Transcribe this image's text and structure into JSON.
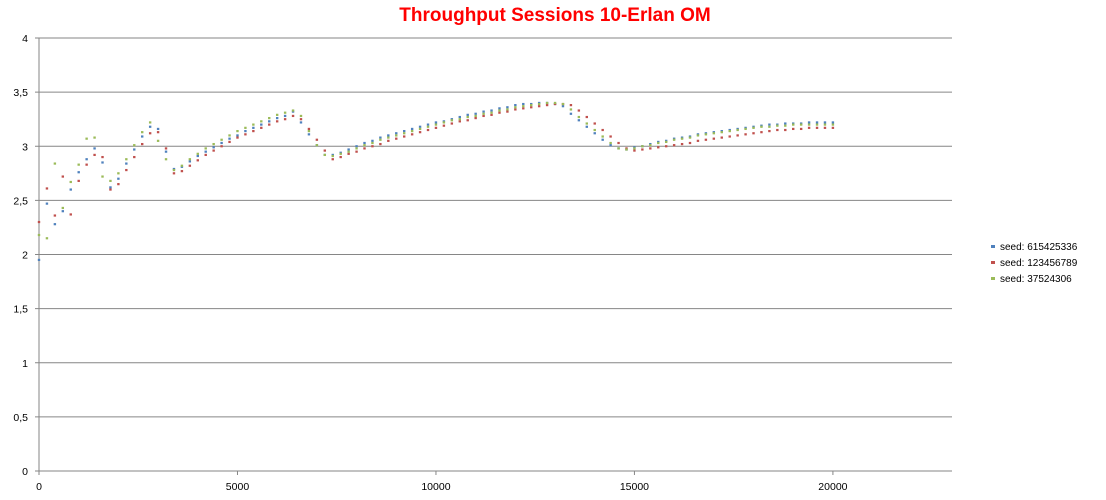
{
  "chart_data": {
    "type": "scatter",
    "title": "Throughput Sessions 10-Erlan OM",
    "title_color": "#ff0000",
    "xlabel": "",
    "ylabel": "",
    "xlim": [
      0,
      23000
    ],
    "ylim": [
      0,
      4
    ],
    "x_ticks": [
      0,
      5000,
      10000,
      15000,
      20000
    ],
    "x_tick_labels": [
      "0",
      "5000",
      "10000",
      "15000",
      "20000"
    ],
    "y_ticks": [
      0,
      0.5,
      1,
      1.5,
      2,
      2.5,
      3,
      3.5,
      4
    ],
    "y_tick_labels": [
      "0",
      "0,5",
      "1",
      "1,5",
      "2",
      "2,5",
      "3",
      "3,5",
      "4"
    ],
    "grid": "horizontal",
    "legend_position": "right",
    "x": [
      0,
      200,
      400,
      600,
      800,
      1000,
      1200,
      1400,
      1600,
      1800,
      2000,
      2200,
      2400,
      2600,
      2800,
      3000,
      3200,
      3400,
      3600,
      3800,
      4000,
      4200,
      4400,
      4600,
      4800,
      5000,
      5200,
      5400,
      5600,
      5800,
      6000,
      6200,
      6400,
      6600,
      6800,
      7000,
      7200,
      7400,
      7600,
      7800,
      8000,
      8200,
      8400,
      8600,
      8800,
      9000,
      9200,
      9400,
      9600,
      9800,
      10000,
      10200,
      10400,
      10600,
      10800,
      11000,
      11200,
      11400,
      11600,
      11800,
      12000,
      12200,
      12400,
      12600,
      12800,
      13000,
      13200,
      13400,
      13600,
      13800,
      14000,
      14200,
      14400,
      14600,
      14800,
      15000,
      15200,
      15400,
      15600,
      15800,
      16000,
      16200,
      16400,
      16600,
      16800,
      17000,
      17200,
      17400,
      17600,
      17800,
      18000,
      18200,
      18400,
      18600,
      18800,
      19000,
      19200,
      19400,
      19600,
      19800,
      20000
    ],
    "series": [
      {
        "name": "seed: 615425336",
        "color": "#4f81bd",
        "values": [
          1.95,
          2.47,
          2.28,
          2.4,
          2.6,
          2.76,
          2.88,
          2.98,
          2.85,
          2.62,
          2.7,
          2.84,
          2.97,
          3.09,
          3.18,
          3.16,
          2.95,
          2.79,
          2.81,
          2.86,
          2.91,
          2.95,
          2.99,
          3.03,
          3.07,
          3.1,
          3.14,
          3.17,
          3.2,
          3.23,
          3.26,
          3.28,
          3.32,
          3.22,
          3.11,
          3.01,
          2.92,
          2.92,
          2.94,
          2.97,
          3.0,
          3.03,
          3.05,
          3.08,
          3.1,
          3.12,
          3.14,
          3.16,
          3.18,
          3.2,
          3.22,
          3.23,
          3.25,
          3.27,
          3.29,
          3.3,
          3.32,
          3.33,
          3.35,
          3.36,
          3.38,
          3.39,
          3.39,
          3.4,
          3.4,
          3.39,
          3.37,
          3.3,
          3.24,
          3.18,
          3.12,
          3.06,
          3.01,
          2.98,
          2.97,
          2.99,
          3.0,
          3.02,
          3.04,
          3.05,
          3.07,
          3.08,
          3.09,
          3.11,
          3.12,
          3.13,
          3.14,
          3.15,
          3.16,
          3.17,
          3.18,
          3.19,
          3.2,
          3.2,
          3.21,
          3.21,
          3.21,
          3.22,
          3.22,
          3.22,
          3.22
        ]
      },
      {
        "name": "seed: 123456789",
        "color": "#c0504d",
        "values": [
          2.3,
          2.61,
          2.36,
          2.72,
          2.37,
          2.68,
          2.83,
          2.92,
          2.9,
          2.6,
          2.65,
          2.78,
          2.9,
          3.02,
          3.12,
          3.13,
          2.98,
          2.75,
          2.77,
          2.82,
          2.87,
          2.92,
          2.96,
          3.0,
          3.04,
          3.08,
          3.11,
          3.14,
          3.17,
          3.2,
          3.23,
          3.25,
          3.28,
          3.25,
          3.16,
          3.06,
          2.96,
          2.88,
          2.9,
          2.93,
          2.95,
          2.98,
          3.0,
          3.02,
          3.05,
          3.07,
          3.09,
          3.11,
          3.13,
          3.15,
          3.17,
          3.19,
          3.21,
          3.23,
          3.24,
          3.26,
          3.28,
          3.29,
          3.31,
          3.32,
          3.34,
          3.35,
          3.36,
          3.37,
          3.38,
          3.39,
          3.39,
          3.38,
          3.33,
          3.27,
          3.21,
          3.15,
          3.09,
          3.03,
          2.98,
          2.96,
          2.97,
          2.98,
          2.99,
          3.0,
          3.01,
          3.02,
          3.03,
          3.05,
          3.06,
          3.07,
          3.08,
          3.09,
          3.1,
          3.11,
          3.12,
          3.13,
          3.14,
          3.15,
          3.15,
          3.16,
          3.16,
          3.17,
          3.17,
          3.17,
          3.17
        ]
      },
      {
        "name": "seed: 37524306",
        "color": "#9bbb59",
        "values": [
          2.18,
          2.15,
          2.84,
          2.43,
          2.67,
          2.83,
          3.07,
          3.08,
          2.72,
          2.68,
          2.75,
          2.88,
          3.01,
          3.13,
          3.22,
          3.05,
          2.88,
          2.78,
          2.82,
          2.88,
          2.93,
          2.98,
          3.02,
          3.06,
          3.1,
          3.14,
          3.17,
          3.2,
          3.23,
          3.26,
          3.29,
          3.31,
          3.33,
          3.28,
          3.14,
          3.01,
          2.92,
          2.91,
          2.93,
          2.95,
          2.98,
          3.01,
          3.03,
          3.06,
          3.08,
          3.1,
          3.12,
          3.14,
          3.16,
          3.18,
          3.2,
          3.22,
          3.24,
          3.25,
          3.27,
          3.28,
          3.3,
          3.31,
          3.33,
          3.34,
          3.36,
          3.37,
          3.38,
          3.39,
          3.4,
          3.4,
          3.39,
          3.34,
          3.27,
          3.21,
          3.15,
          3.09,
          3.03,
          2.98,
          2.97,
          2.98,
          3.0,
          3.01,
          3.03,
          3.04,
          3.06,
          3.07,
          3.08,
          3.1,
          3.11,
          3.12,
          3.13,
          3.14,
          3.15,
          3.16,
          3.17,
          3.18,
          3.18,
          3.19,
          3.19,
          3.2,
          3.2,
          3.2,
          3.2,
          3.2,
          3.2
        ]
      }
    ]
  }
}
